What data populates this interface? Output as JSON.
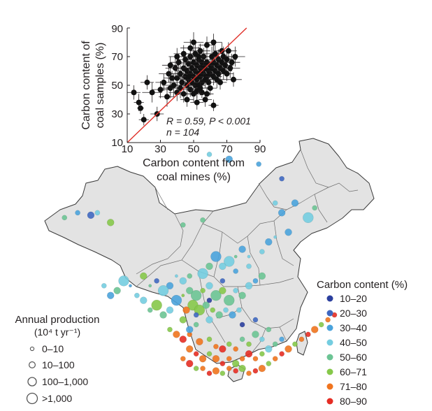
{
  "chart_data": [
    {
      "type": "scatter",
      "xlabel_line1": "Carbon content from",
      "xlabel_line2": "coal mines (%)",
      "ylabel_line1": "Carbon content of",
      "ylabel_line2": "coal samples (%)",
      "xlim": [
        10,
        90
      ],
      "ylim": [
        10,
        90
      ],
      "xticks": [
        "10",
        "30",
        "50",
        "70",
        "90"
      ],
      "yticks": [
        "10",
        "30",
        "50",
        "70",
        "90"
      ],
      "stat_line1": "R = 0.59, P < 0.001",
      "stat_line2": "n = 104",
      "fit_line": {
        "x": [
          10,
          90
        ],
        "y": [
          10,
          99
        ]
      },
      "points": [
        [
          14,
          45,
          4,
          5
        ],
        [
          17,
          38,
          3,
          6
        ],
        [
          18,
          34,
          2,
          4
        ],
        [
          20,
          26,
          3,
          4
        ],
        [
          22,
          52,
          4,
          5
        ],
        [
          25,
          45,
          6,
          7
        ],
        [
          28,
          30,
          4,
          5
        ],
        [
          30,
          47,
          5,
          6
        ],
        [
          32,
          52,
          5,
          6
        ],
        [
          34,
          42,
          5,
          7
        ],
        [
          35,
          58,
          6,
          6
        ],
        [
          36,
          48,
          6,
          7
        ],
        [
          37,
          55,
          5,
          5
        ],
        [
          38,
          50,
          7,
          8
        ],
        [
          39,
          62,
          6,
          7
        ],
        [
          40,
          45,
          5,
          6
        ],
        [
          40,
          55,
          6,
          8
        ],
        [
          41,
          66,
          5,
          6
        ],
        [
          42,
          58,
          7,
          6
        ],
        [
          42,
          48,
          6,
          7
        ],
        [
          43,
          52,
          5,
          5
        ],
        [
          44,
          62,
          6,
          8
        ],
        [
          44,
          44,
          5,
          6
        ],
        [
          45,
          56,
          6,
          7
        ],
        [
          45,
          68,
          5,
          5
        ],
        [
          46,
          50,
          6,
          6
        ],
        [
          46,
          60,
          7,
          8
        ],
        [
          47,
          54,
          5,
          6
        ],
        [
          47,
          65,
          6,
          7
        ],
        [
          48,
          47,
          5,
          5
        ],
        [
          48,
          58,
          6,
          7
        ],
        [
          48,
          70,
          6,
          6
        ],
        [
          49,
          52,
          5,
          6
        ],
        [
          49,
          62,
          6,
          7
        ],
        [
          50,
          44,
          4,
          6
        ],
        [
          50,
          56,
          6,
          7
        ],
        [
          50,
          66,
          5,
          6
        ],
        [
          51,
          50,
          6,
          6
        ],
        [
          51,
          60,
          5,
          7
        ],
        [
          51,
          72,
          7,
          8
        ],
        [
          52,
          46,
          4,
          5
        ],
        [
          52,
          54,
          6,
          6
        ],
        [
          52,
          64,
          5,
          7
        ],
        [
          53,
          58,
          6,
          6
        ],
        [
          53,
          68,
          6,
          7
        ],
        [
          53,
          50,
          4,
          5
        ],
        [
          54,
          62,
          5,
          6
        ],
        [
          54,
          56,
          6,
          7
        ],
        [
          54,
          74,
          6,
          5
        ],
        [
          55,
          52,
          5,
          6
        ],
        [
          55,
          60,
          6,
          7
        ],
        [
          55,
          66,
          5,
          6
        ],
        [
          55,
          45,
          3,
          4
        ],
        [
          56,
          58,
          6,
          6
        ],
        [
          56,
          64,
          5,
          7
        ],
        [
          56,
          70,
          6,
          6
        ],
        [
          57,
          54,
          5,
          6
        ],
        [
          57,
          62,
          6,
          7
        ],
        [
          57,
          40,
          4,
          5
        ],
        [
          58,
          56,
          5,
          6
        ],
        [
          58,
          66,
          6,
          7
        ],
        [
          58,
          78,
          5,
          6
        ],
        [
          59,
          52,
          5,
          5
        ],
        [
          59,
          60,
          6,
          7
        ],
        [
          60,
          58,
          6,
          6
        ],
        [
          60,
          64,
          5,
          7
        ],
        [
          60,
          48,
          4,
          5
        ],
        [
          61,
          62,
          6,
          6
        ],
        [
          61,
          70,
          5,
          7
        ],
        [
          62,
          56,
          5,
          6
        ],
        [
          62,
          66,
          6,
          6
        ],
        [
          62,
          36,
          3,
          4
        ],
        [
          63,
          60,
          5,
          7
        ],
        [
          63,
          72,
          6,
          6
        ],
        [
          64,
          54,
          5,
          6
        ],
        [
          64,
          64,
          6,
          7
        ],
        [
          65,
          58,
          5,
          6
        ],
        [
          65,
          68,
          6,
          7
        ],
        [
          66,
          62,
          5,
          6
        ],
        [
          66,
          52,
          4,
          5
        ],
        [
          67,
          66,
          6,
          7
        ],
        [
          67,
          74,
          5,
          6
        ],
        [
          68,
          60,
          5,
          6
        ],
        [
          68,
          70,
          6,
          7
        ],
        [
          69,
          64,
          5,
          6
        ],
        [
          70,
          58,
          4,
          5
        ],
        [
          70,
          68,
          6,
          6
        ],
        [
          71,
          74,
          5,
          6
        ],
        [
          72,
          62,
          6,
          7
        ],
        [
          73,
          66,
          5,
          6
        ],
        [
          74,
          54,
          5,
          5
        ],
        [
          75,
          70,
          6,
          7
        ],
        [
          46,
          40,
          4,
          5
        ],
        [
          48,
          76,
          6,
          6
        ],
        [
          52,
          38,
          4,
          5
        ],
        [
          40,
          70,
          5,
          6
        ],
        [
          44,
          72,
          6,
          6
        ],
        [
          36,
          64,
          5,
          6
        ],
        [
          62,
          80,
          5,
          6
        ],
        [
          58,
          44,
          4,
          5
        ],
        [
          54,
          48,
          5,
          5
        ],
        [
          50,
          80,
          6,
          7
        ],
        [
          47,
          56,
          5,
          6
        ],
        [
          53,
          70,
          6,
          7
        ]
      ]
    },
    {
      "type": "map",
      "categories_legend_title": "Carbon content (%)",
      "categories": [
        "10–20",
        "20–30",
        "30–40",
        "40–50",
        "50–60",
        "60–71",
        "71–80",
        "80–90"
      ],
      "colors": [
        "#2b3f9e",
        "#3f68c1",
        "#4aa3dc",
        "#74cde0",
        "#6cc494",
        "#86c84a",
        "#f0741e",
        "#e52d24"
      ],
      "size_legend_title_line1": "Annual production",
      "size_legend_title_line2": "(10⁴ t yr⁻¹)",
      "size_classes": [
        "0–10",
        "10–100",
        "100–1,000",
        ">1,000"
      ],
      "mine_sites": [
        [
          0.5,
          0.06,
          3,
          1
        ],
        [
          0.56,
          0.08,
          2,
          2
        ],
        [
          0.65,
          0.1,
          2,
          1
        ],
        [
          0.72,
          0.16,
          1,
          1
        ],
        [
          0.76,
          0.26,
          2,
          2
        ],
        [
          0.8,
          0.32,
          3,
          3
        ],
        [
          0.82,
          0.28,
          4,
          1
        ],
        [
          0.74,
          0.38,
          2,
          2
        ],
        [
          0.7,
          0.4,
          3,
          0
        ],
        [
          0.68,
          0.42,
          2,
          2
        ],
        [
          0.66,
          0.46,
          3,
          1
        ],
        [
          0.62,
          0.48,
          3,
          0
        ],
        [
          0.6,
          0.45,
          2,
          2
        ],
        [
          0.58,
          0.48,
          4,
          0
        ],
        [
          0.56,
          0.5,
          3,
          3
        ],
        [
          0.54,
          0.52,
          3,
          2
        ],
        [
          0.52,
          0.48,
          2,
          3
        ],
        [
          0.5,
          0.52,
          4,
          2
        ],
        [
          0.48,
          0.55,
          3,
          3
        ],
        [
          0.46,
          0.54,
          2,
          4
        ],
        [
          0.44,
          0.56,
          4,
          1
        ],
        [
          0.42,
          0.58,
          3,
          2
        ],
        [
          0.4,
          0.56,
          3,
          0
        ],
        [
          0.38,
          0.6,
          2,
          2
        ],
        [
          0.36,
          0.62,
          3,
          3
        ],
        [
          0.34,
          0.58,
          1,
          1
        ],
        [
          0.32,
          0.6,
          4,
          0
        ],
        [
          0.3,
          0.56,
          5,
          2
        ],
        [
          0.28,
          0.64,
          3,
          1
        ],
        [
          0.26,
          0.6,
          2,
          0
        ],
        [
          0.24,
          0.58,
          3,
          3
        ],
        [
          0.22,
          0.62,
          4,
          2
        ],
        [
          0.2,
          0.64,
          2,
          2
        ],
        [
          0.18,
          0.6,
          3,
          1
        ],
        [
          0.3,
          0.66,
          3,
          2
        ],
        [
          0.32,
          0.7,
          4,
          1
        ],
        [
          0.34,
          0.68,
          5,
          3
        ],
        [
          0.36,
          0.72,
          4,
          2
        ],
        [
          0.38,
          0.7,
          3,
          2
        ],
        [
          0.4,
          0.66,
          2,
          3
        ],
        [
          0.42,
          0.64,
          5,
          0
        ],
        [
          0.44,
          0.62,
          4,
          2
        ],
        [
          0.46,
          0.64,
          4,
          3
        ],
        [
          0.48,
          0.62,
          5,
          1
        ],
        [
          0.5,
          0.6,
          3,
          2
        ],
        [
          0.52,
          0.64,
          4,
          3
        ],
        [
          0.54,
          0.62,
          5,
          2
        ],
        [
          0.56,
          0.66,
          4,
          3
        ],
        [
          0.58,
          0.62,
          3,
          1
        ],
        [
          0.6,
          0.64,
          4,
          2
        ],
        [
          0.62,
          0.6,
          3,
          2
        ],
        [
          0.64,
          0.58,
          2,
          1
        ],
        [
          0.66,
          0.56,
          4,
          2
        ],
        [
          0.45,
          0.68,
          5,
          3
        ],
        [
          0.43,
          0.7,
          6,
          2
        ],
        [
          0.47,
          0.7,
          5,
          3
        ],
        [
          0.49,
          0.68,
          4,
          2
        ],
        [
          0.51,
          0.7,
          5,
          1
        ],
        [
          0.53,
          0.72,
          4,
          2
        ],
        [
          0.55,
          0.7,
          3,
          1
        ],
        [
          0.57,
          0.72,
          2,
          2
        ],
        [
          0.59,
          0.7,
          3,
          1
        ],
        [
          0.42,
          0.74,
          5,
          2
        ],
        [
          0.46,
          0.76,
          4,
          1
        ],
        [
          0.5,
          0.74,
          3,
          2
        ],
        [
          0.4,
          0.8,
          6,
          2
        ],
        [
          0.38,
          0.78,
          5,
          1
        ],
        [
          0.42,
          0.82,
          7,
          2
        ],
        [
          0.44,
          0.8,
          6,
          1
        ],
        [
          0.47,
          0.83,
          6,
          2
        ],
        [
          0.5,
          0.82,
          5,
          1
        ],
        [
          0.52,
          0.85,
          6,
          1
        ],
        [
          0.54,
          0.86,
          7,
          2
        ],
        [
          0.56,
          0.84,
          5,
          1
        ],
        [
          0.58,
          0.86,
          6,
          1
        ],
        [
          0.6,
          0.82,
          4,
          1
        ],
        [
          0.62,
          0.84,
          5,
          1
        ],
        [
          0.64,
          0.8,
          4,
          2
        ],
        [
          0.66,
          0.82,
          3,
          1
        ],
        [
          0.68,
          0.78,
          4,
          1
        ],
        [
          0.44,
          0.86,
          6,
          2
        ],
        [
          0.46,
          0.88,
          7,
          1
        ],
        [
          0.48,
          0.9,
          6,
          2
        ],
        [
          0.5,
          0.88,
          5,
          1
        ],
        [
          0.52,
          0.9,
          6,
          2
        ],
        [
          0.54,
          0.92,
          7,
          1
        ],
        [
          0.56,
          0.9,
          6,
          1
        ],
        [
          0.58,
          0.92,
          5,
          2
        ],
        [
          0.6,
          0.9,
          6,
          1
        ],
        [
          0.62,
          0.88,
          7,
          2
        ],
        [
          0.64,
          0.9,
          6,
          1
        ],
        [
          0.66,
          0.88,
          5,
          1
        ],
        [
          0.68,
          0.86,
          3,
          2
        ],
        [
          0.7,
          0.84,
          4,
          1
        ],
        [
          0.72,
          0.82,
          2,
          1
        ],
        [
          0.42,
          0.9,
          6,
          1
        ],
        [
          0.44,
          0.92,
          7,
          2
        ],
        [
          0.46,
          0.94,
          5,
          1
        ],
        [
          0.48,
          0.94,
          6,
          1
        ],
        [
          0.5,
          0.96,
          7,
          1
        ],
        [
          0.52,
          0.95,
          6,
          2
        ],
        [
          0.54,
          0.96,
          5,
          1
        ],
        [
          0.56,
          0.94,
          6,
          1
        ],
        [
          0.58,
          0.95,
          7,
          1
        ],
        [
          0.6,
          0.94,
          5,
          2
        ],
        [
          0.62,
          0.96,
          6,
          1
        ],
        [
          0.64,
          0.95,
          7,
          1
        ],
        [
          0.66,
          0.94,
          6,
          2
        ],
        [
          0.68,
          0.92,
          5,
          1
        ],
        [
          0.7,
          0.9,
          6,
          1
        ],
        [
          0.72,
          0.88,
          7,
          1
        ],
        [
          0.74,
          0.86,
          6,
          2
        ],
        [
          0.76,
          0.84,
          5,
          1
        ],
        [
          0.78,
          0.82,
          6,
          1
        ],
        [
          0.8,
          0.8,
          7,
          1
        ],
        [
          0.82,
          0.78,
          6,
          2
        ],
        [
          0.84,
          0.76,
          5,
          1
        ],
        [
          0.86,
          0.74,
          6,
          1
        ],
        [
          0.88,
          0.72,
          7,
          1
        ],
        [
          0.46,
          0.72,
          1,
          1
        ],
        [
          0.5,
          0.66,
          0,
          1
        ],
        [
          0.54,
          0.58,
          1,
          1
        ],
        [
          0.58,
          0.54,
          2,
          1
        ],
        [
          0.62,
          0.52,
          3,
          1
        ],
        [
          0.6,
          0.76,
          0,
          1
        ],
        [
          0.64,
          0.74,
          1,
          1
        ],
        [
          0.44,
          0.78,
          2,
          2
        ],
        [
          0.06,
          0.32,
          4,
          1
        ],
        [
          0.1,
          0.3,
          2,
          1
        ],
        [
          0.14,
          0.31,
          1,
          2
        ],
        [
          0.16,
          0.3,
          3,
          1
        ],
        [
          0.2,
          0.34,
          5,
          2
        ],
        [
          0.42,
          0.35,
          4,
          1
        ],
        [
          0.48,
          0.33,
          4,
          1
        ],
        [
          0.7,
          0.26,
          3,
          1
        ],
        [
          0.72,
          0.3,
          2,
          2
        ]
      ]
    }
  ]
}
